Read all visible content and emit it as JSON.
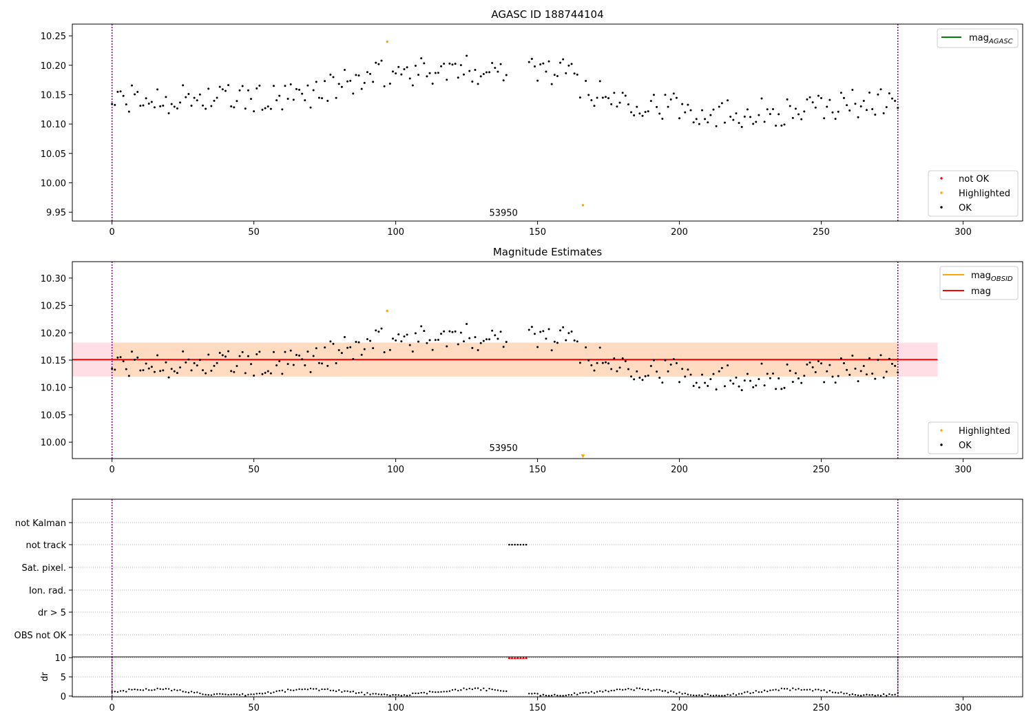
{
  "colors": {
    "ok": "#000000",
    "highlighted": "#ffa500",
    "not_ok": "#ff0000",
    "mag_agasc_line": "#008000",
    "mag_obsid_line": "#ffa500",
    "mag_line": "#ff0000",
    "obs_boundary": "#800080",
    "band_obsid": "#ffdab9",
    "band_mag": "#ffc0cb"
  },
  "chart_data": [
    {
      "id": "agasc",
      "type": "scatter",
      "title": "AGASC ID 188744104",
      "xlim": [
        -14,
        321
      ],
      "ylim": [
        9.935,
        10.27
      ],
      "xticks": [
        0,
        50,
        100,
        150,
        200,
        250,
        300
      ],
      "yticks": [
        9.95,
        10.0,
        10.05,
        10.1,
        10.15,
        10.2,
        10.25
      ],
      "annotation": {
        "text": "53950",
        "x": 138,
        "y": 9.94
      },
      "obs_boundaries": [
        0,
        277
      ],
      "legend_lines": [
        {
          "label_main": "mag",
          "label_sub": "AGASC",
          "color_key": "mag_agasc_line"
        }
      ],
      "legend_points": [
        {
          "label": "not OK",
          "color_key": "not_ok"
        },
        {
          "label": "Highlighted",
          "color_key": "highlighted"
        },
        {
          "label": "OK",
          "color_key": "ok"
        }
      ],
      "highlighted_points": [
        [
          97,
          10.24
        ],
        [
          166,
          9.962
        ]
      ]
    },
    {
      "id": "estimates",
      "type": "scatter",
      "title": "Magnitude Estimates",
      "xlim": [
        -14,
        321
      ],
      "ylim": [
        9.97,
        10.33
      ],
      "xticks": [
        0,
        50,
        100,
        150,
        200,
        250,
        300
      ],
      "yticks": [
        10.0,
        10.05,
        10.1,
        10.15,
        10.2,
        10.25,
        10.3
      ],
      "annotation": {
        "text": "53950",
        "x": 138,
        "y": 9.98
      },
      "obs_boundaries": [
        0,
        277
      ],
      "mag_line": {
        "value": 10.151,
        "x_range": [
          -14,
          291
        ],
        "band": [
          10.12,
          10.182
        ]
      },
      "mag_obsid_band": {
        "x_range": [
          0,
          277
        ],
        "band": [
          10.12,
          10.182
        ]
      },
      "legend_lines": [
        {
          "label_main": "mag",
          "label_sub": "OBSID",
          "color_key": "mag_obsid_line"
        },
        {
          "label_main": "mag",
          "label_sub": "",
          "color_key": "mag_line"
        }
      ],
      "legend_points": [
        {
          "label": "Highlighted",
          "color_key": "highlighted"
        },
        {
          "label": "OK",
          "color_key": "ok"
        }
      ],
      "highlighted_points": [
        [
          97,
          10.24
        ]
      ],
      "offscale_marker": {
        "x": 166,
        "y": 9.975
      }
    },
    {
      "id": "flags",
      "type": "scatter",
      "xlim": [
        -14,
        321
      ],
      "xticks": [
        0,
        50,
        100,
        150,
        200,
        250,
        300
      ],
      "flag_rows": [
        "not Kalman",
        "not track",
        "Sat. pixel.",
        "Ion. rad.",
        "dr > 5",
        "OBS not OK"
      ],
      "flags": {
        "not track": [
          [
            140,
            146
          ]
        ]
      },
      "obs_boundaries": [
        0,
        277
      ]
    },
    {
      "id": "dr",
      "type": "scatter",
      "ylabel": "dr",
      "xlim": [
        -14,
        321
      ],
      "ylim": [
        -0.2,
        10.2
      ],
      "xticks": [
        0,
        50,
        100,
        150,
        200,
        250,
        300
      ],
      "yticks": [
        0,
        5,
        10
      ],
      "clipped_at": 10,
      "clipped_x_range": [
        140,
        146
      ],
      "obs_boundaries": [
        0,
        277
      ]
    }
  ]
}
